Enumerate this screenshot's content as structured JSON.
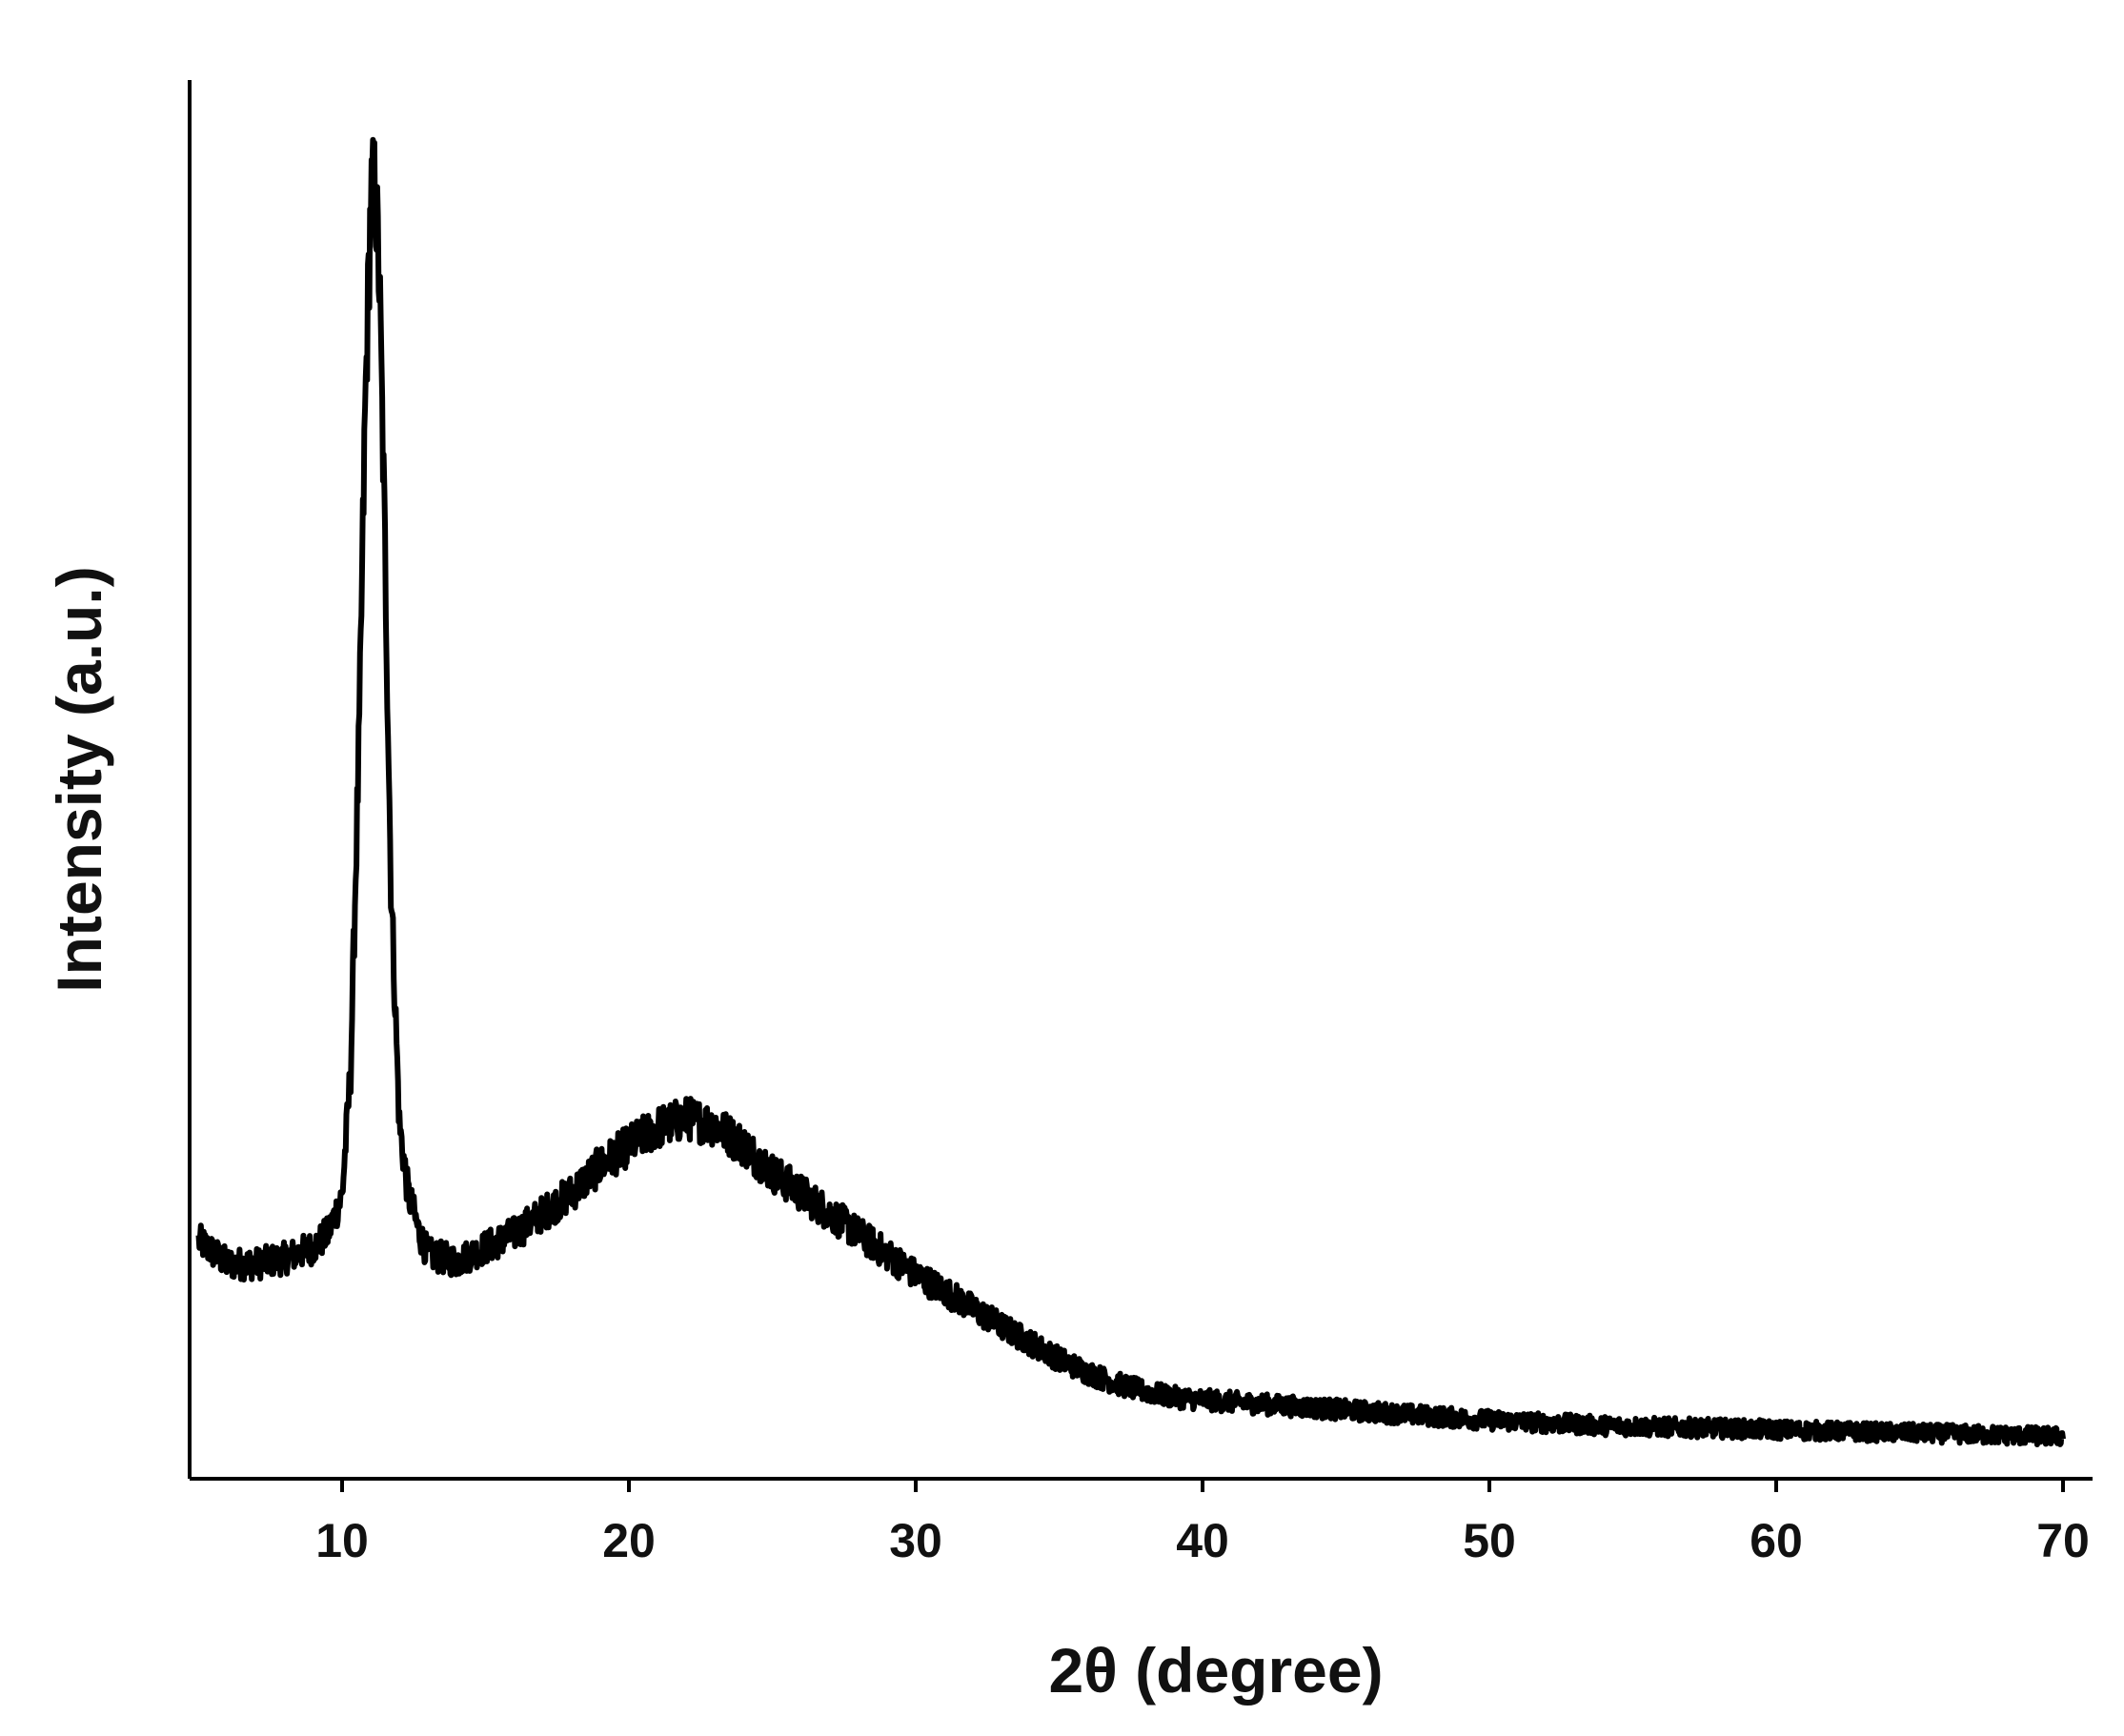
{
  "colors": {
    "line": "#000000",
    "axis": "#000000",
    "background": "#ffffff"
  },
  "chart_data": {
    "type": "line",
    "title": "",
    "xlabel": "2θ (degree)",
    "ylabel": "Intensity (a.u.)",
    "xlim": [
      5,
      70
    ],
    "ylim": [
      0,
      100
    ],
    "x_ticks": [
      10,
      20,
      30,
      40,
      50,
      60,
      70
    ],
    "x_tick_labels": [
      "10",
      "20",
      "30",
      "40",
      "50",
      "60",
      "70"
    ],
    "y_ticks_shown": false,
    "grid": false,
    "legend": "none",
    "series": [
      {
        "color": "#000000",
        "x": [
          5,
          6,
          7,
          8,
          9,
          9.5,
          10,
          10.3,
          10.6,
          10.8,
          11,
          11.15,
          11.3,
          11.5,
          11.7,
          12,
          12.3,
          12.7,
          13,
          14,
          15,
          16,
          17,
          18,
          19,
          20,
          21,
          22,
          23,
          24,
          25,
          26,
          27,
          28,
          29,
          30,
          31,
          32,
          33,
          34,
          35,
          36,
          37,
          38,
          39,
          40,
          42,
          44,
          46,
          48,
          50,
          52,
          54,
          56,
          58,
          60,
          62,
          64,
          66,
          68,
          70
        ],
        "y": [
          17.5,
          15.8,
          15.8,
          16.2,
          17.0,
          18.0,
          20.8,
          30.0,
          55.0,
          78.0,
          94.0,
          95.0,
          88.0,
          68.0,
          44.0,
          26.0,
          21.0,
          18.0,
          16.5,
          16.0,
          17.0,
          18.0,
          19.5,
          21.0,
          23.0,
          24.5,
          25.8,
          26.5,
          26.0,
          24.5,
          22.5,
          21.0,
          19.5,
          18.0,
          16.5,
          15.0,
          13.8,
          12.5,
          11.2,
          10.0,
          8.8,
          7.8,
          7.0,
          6.4,
          6.0,
          5.8,
          5.5,
          5.2,
          4.9,
          4.6,
          4.3,
          4.1,
          3.9,
          3.8,
          3.7,
          3.6,
          3.5,
          3.4,
          3.3,
          3.2,
          3.1
        ]
      }
    ]
  }
}
